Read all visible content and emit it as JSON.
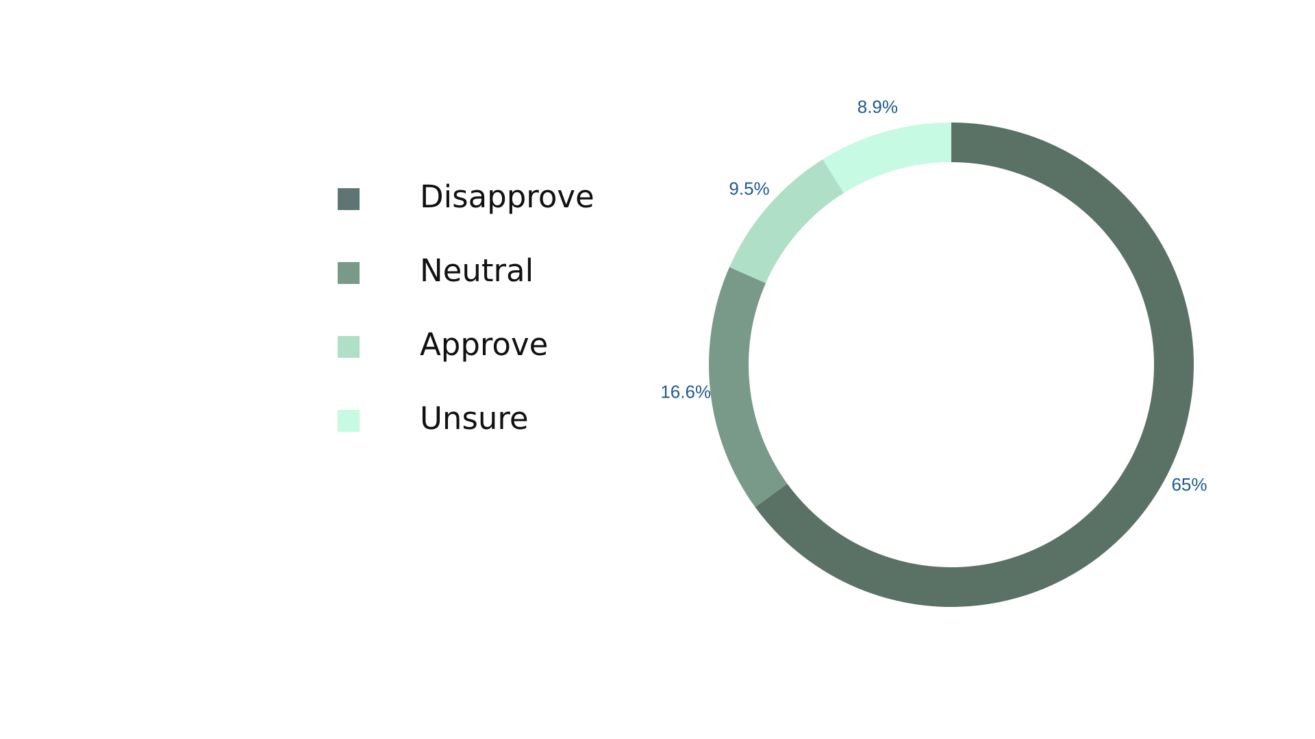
{
  "chart_data": {
    "type": "pie",
    "style": "donut",
    "title": "",
    "categories": [
      "Disapprove",
      "Neutral",
      "Approve",
      "Unsure"
    ],
    "values": [
      65,
      16.6,
      9.5,
      8.9
    ],
    "data_labels": [
      "65%",
      "16.6%",
      "9.5%",
      "8.9%"
    ],
    "colors": [
      "#5a7265",
      "#799a88",
      "#b0dfc8",
      "#c6fae2"
    ],
    "legend_swatch_colors": [
      "#5e7573",
      "#799a88",
      "#b0dfc8",
      "#c6fae2"
    ],
    "label_color": "#1f5a8e",
    "legend_position": "left",
    "start_angle": "top",
    "direction": "clockwise"
  }
}
